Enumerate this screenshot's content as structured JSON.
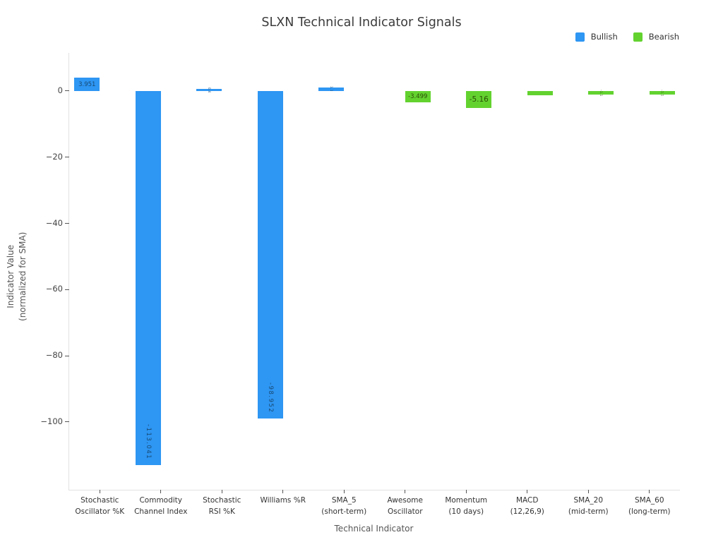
{
  "title": "SLXN Technical Indicator Signals",
  "legend": {
    "position": "top-right",
    "items": [
      {
        "label": "Bullish",
        "color": "#2E96F3"
      },
      {
        "label": "Bearish",
        "color": "#63D22F"
      }
    ]
  },
  "chart_data": {
    "type": "bar",
    "title": "SLXN Technical Indicator Signals",
    "xlabel": "Technical Indicator",
    "ylabel": "Indicator Value\n(normalized for SMA)",
    "categories": [
      "Stochastic\nOscillator %K",
      "Commodity\nChannel Index",
      "Stochastic\nRSI %K",
      "Williams %R",
      "SMA_5\n(short-term)",
      "Awesome\nOscillator",
      "Momentum\n(10 days)",
      "MACD\n(12,26,9)",
      "SMA_20\n(mid-term)",
      "SMA_60\n(long-term)"
    ],
    "series": [
      {
        "name": "Bullish",
        "color": "#2E96F3",
        "label_color": "#174a73",
        "values": [
          3.951,
          -113.041,
          0.6,
          -98.952,
          1.1,
          null,
          null,
          null,
          null,
          null
        ],
        "labels": [
          "3.951",
          "-113.041",
          "0.6",
          "-98.952",
          "1.1",
          "",
          "",
          "",
          "",
          ""
        ],
        "label_styles": [
          "inside-h",
          "inside-v",
          "tiny-v",
          "inside-v",
          "tiny-v",
          "",
          "",
          "",
          "",
          ""
        ],
        "label_sizes": [
          8.5,
          8.5,
          4,
          8.5,
          4,
          0,
          0,
          0,
          0,
          0
        ]
      },
      {
        "name": "Bearish",
        "color": "#63D22F",
        "label_color": "#2a4d05",
        "values": [
          null,
          null,
          null,
          null,
          null,
          -3.499,
          -5.16,
          -1.2,
          -1.1,
          -1.1
        ],
        "labels": [
          "",
          "",
          "",
          "",
          "",
          "-3.499",
          "-5.16",
          "",
          "-1.1",
          "-1.1"
        ],
        "label_styles": [
          "",
          "",
          "",
          "",
          "",
          "inside-h",
          "inside-h",
          "none",
          "tiny-v",
          "tiny-v"
        ],
        "label_sizes": [
          0,
          0,
          0,
          0,
          0,
          8.5,
          10.5,
          0,
          4,
          4
        ]
      }
    ],
    "ylim": [
      -120.5,
      11.5
    ],
    "yticks": [
      {
        "v": 0,
        "label": "0"
      },
      {
        "v": -20,
        "label": "−20"
      },
      {
        "v": -40,
        "label": "−40"
      },
      {
        "v": -60,
        "label": "−60"
      },
      {
        "v": -80,
        "label": "−80"
      },
      {
        "v": -100,
        "label": "−100"
      }
    ],
    "grid": false,
    "legend_position": "top-right"
  }
}
